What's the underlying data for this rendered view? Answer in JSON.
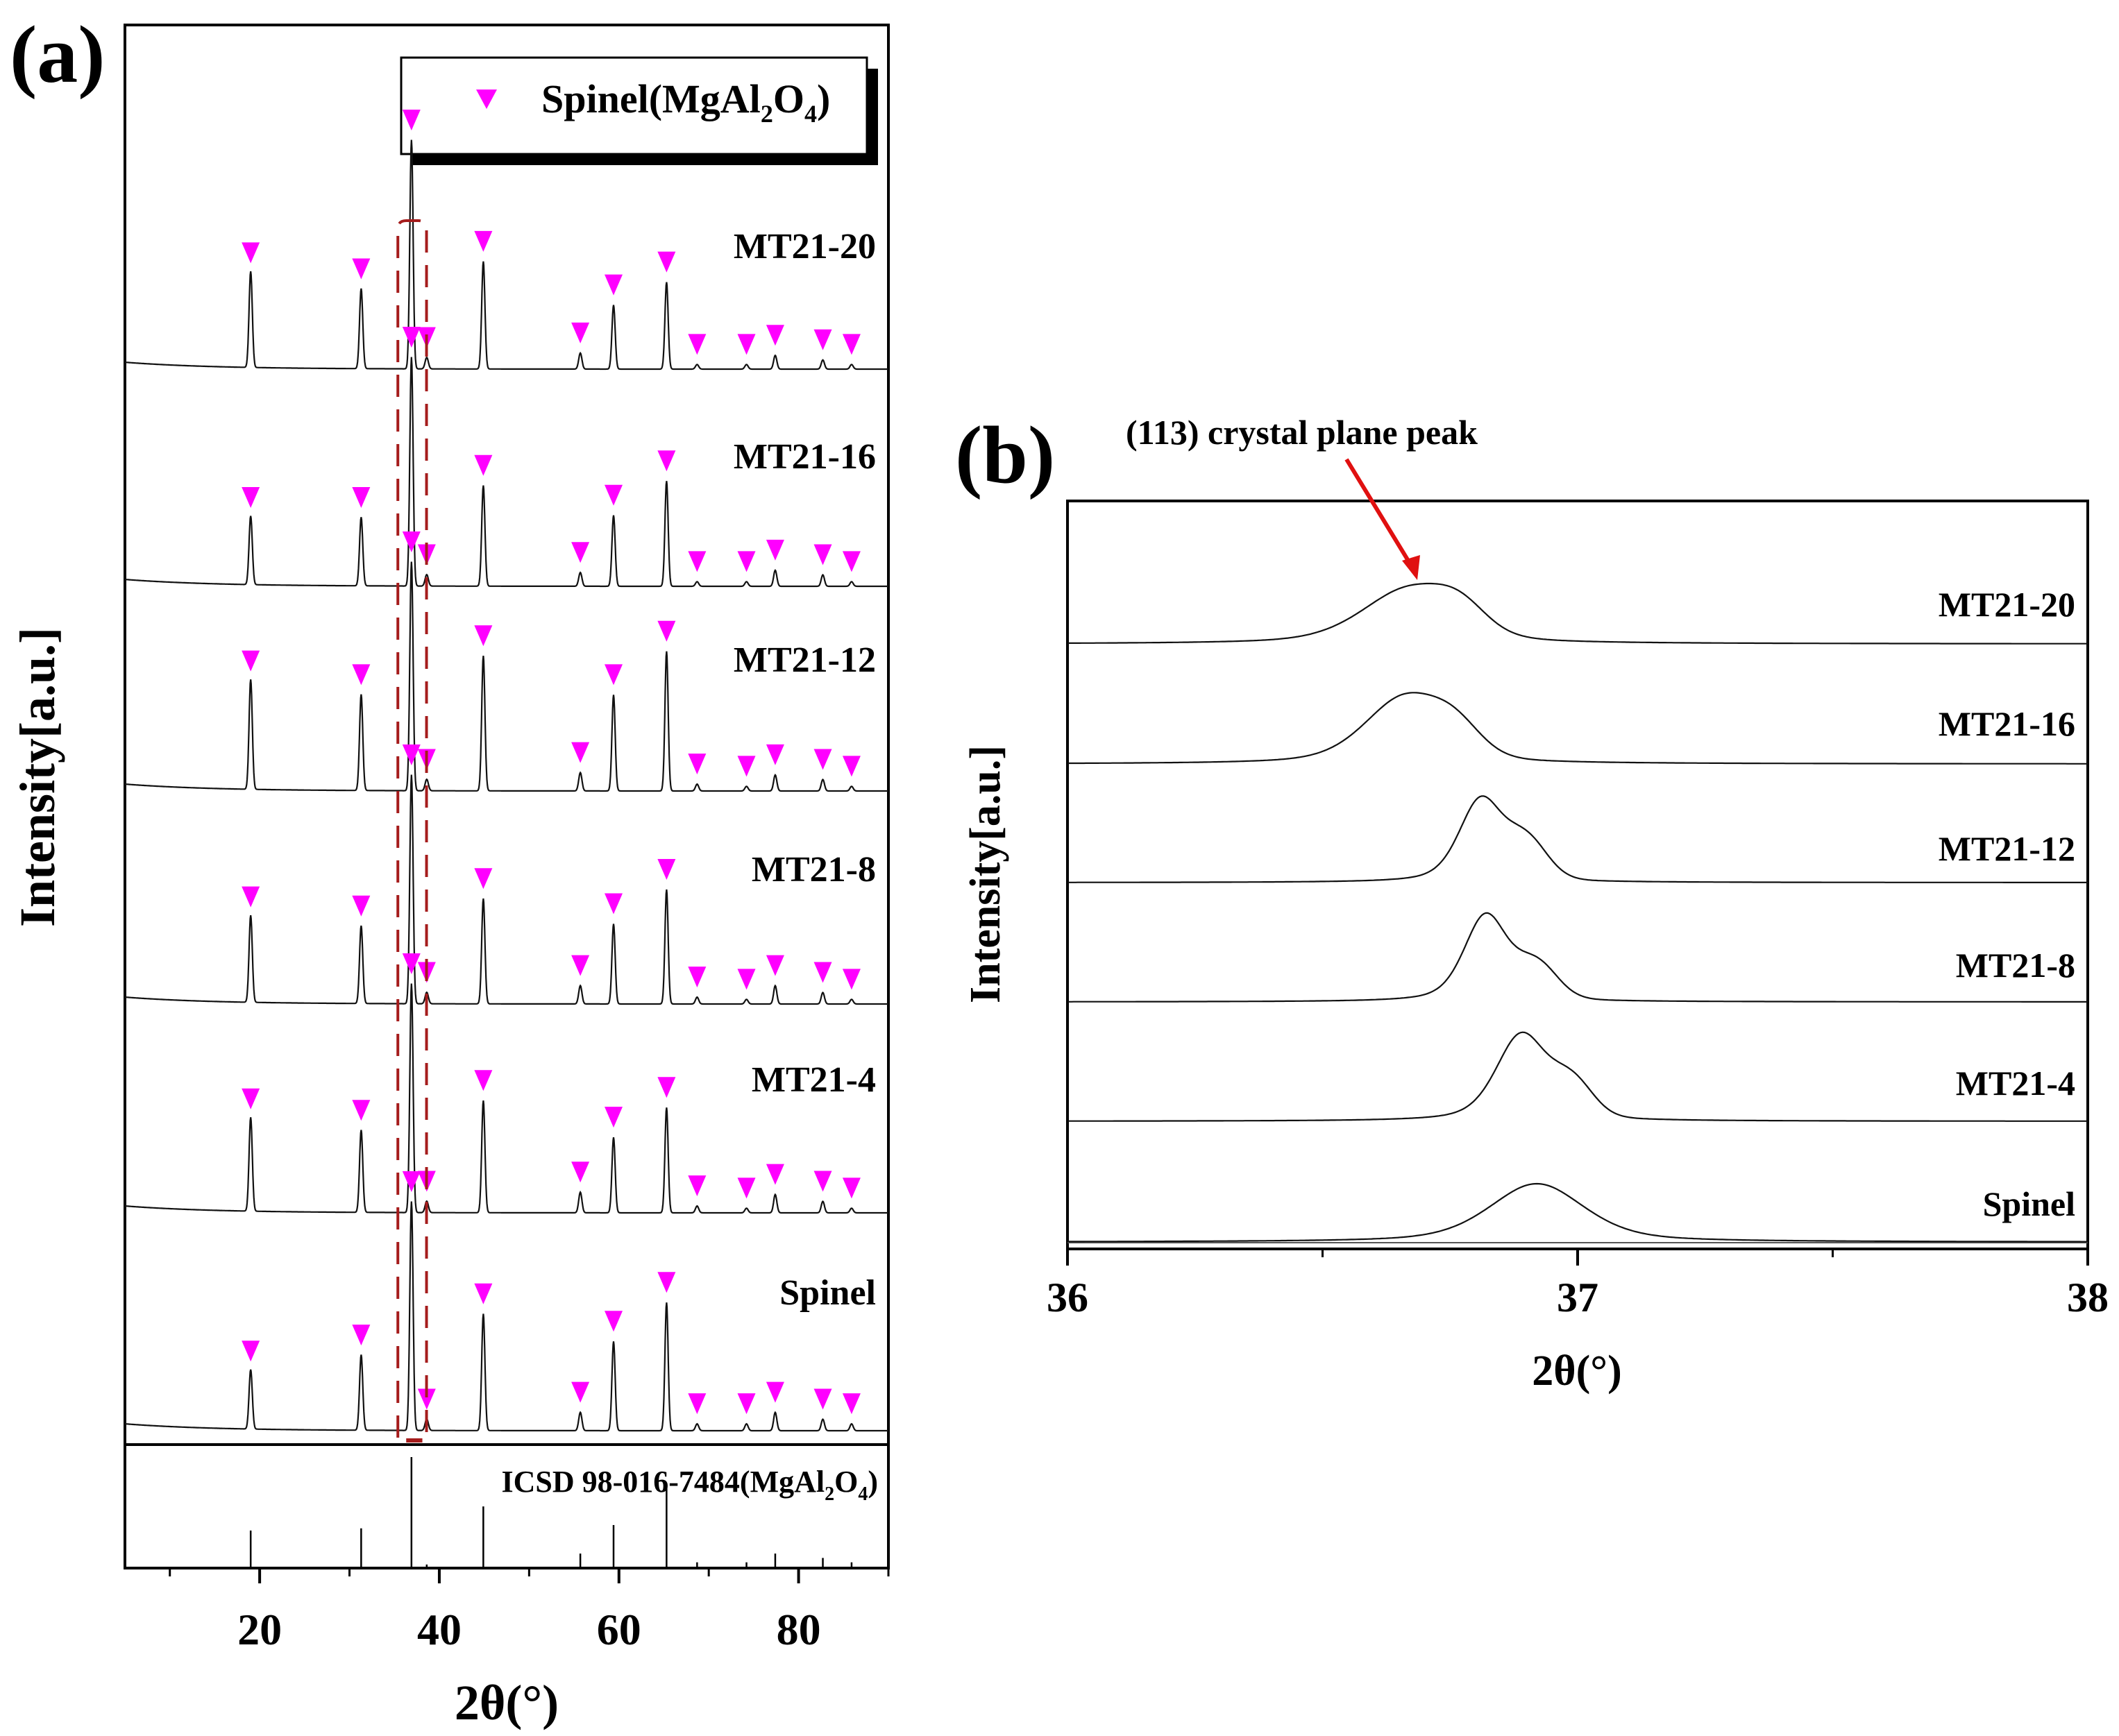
{
  "figure": {
    "panel_a_label": "(a)",
    "panel_b_label": "(b)"
  },
  "chart_data": [
    {
      "id": "panel-a",
      "type": "line",
      "title": "",
      "xlabel": "2θ(°)",
      "ylabel": "Intensity[a.u.]",
      "xlim": [
        5,
        90
      ],
      "xticks_major": [
        20,
        40,
        60,
        80
      ],
      "xticks_minor": [
        10,
        30,
        50,
        70,
        90
      ],
      "y_ticks_shown": false,
      "grid": false,
      "legend": {
        "placement": "top-right",
        "entries": [
          {
            "marker": "inverted-triangle",
            "color": "#ff00ff",
            "label_main": "Spinel(MgAl",
            "sub1": "2",
            "mid": "O",
            "sub2": "4",
            "label_end": ")"
          }
        ]
      },
      "marker_color": "#ff00ff",
      "highlight_box": {
        "x_range": [
          35.0,
          38.5
        ],
        "color": "#a51c1c",
        "style": "dashed"
      },
      "peak_positions": [
        19.0,
        31.3,
        36.9,
        38.6,
        44.9,
        55.7,
        59.4,
        65.3,
        68.7,
        74.2,
        77.4,
        82.7,
        85.9
      ],
      "series": [
        {
          "name": "MT21-20",
          "relative_intensity": [
            0.42,
            0.35,
            1.0,
            0.05,
            0.47,
            0.07,
            0.28,
            0.38,
            0.02,
            0.02,
            0.06,
            0.04,
            0.02
          ]
        },
        {
          "name": "MT21-16",
          "relative_intensity": [
            0.3,
            0.3,
            1.0,
            0.05,
            0.44,
            0.06,
            0.31,
            0.46,
            0.02,
            0.02,
            0.07,
            0.05,
            0.02
          ]
        },
        {
          "name": "MT21-12",
          "relative_intensity": [
            0.48,
            0.42,
            1.0,
            0.05,
            0.59,
            0.08,
            0.42,
            0.61,
            0.03,
            0.02,
            0.07,
            0.05,
            0.02
          ]
        },
        {
          "name": "MT21-8",
          "relative_intensity": [
            0.38,
            0.34,
            1.0,
            0.05,
            0.46,
            0.08,
            0.35,
            0.5,
            0.03,
            0.02,
            0.08,
            0.05,
            0.02
          ]
        },
        {
          "name": "MT21-4",
          "relative_intensity": [
            0.41,
            0.36,
            1.0,
            0.05,
            0.49,
            0.09,
            0.33,
            0.46,
            0.03,
            0.02,
            0.08,
            0.05,
            0.02
          ]
        },
        {
          "name": "Spinel",
          "relative_intensity": [
            0.26,
            0.33,
            1.0,
            0.05,
            0.51,
            0.08,
            0.39,
            0.56,
            0.03,
            0.03,
            0.08,
            0.05,
            0.03
          ]
        }
      ],
      "reference": {
        "label_main": "ICSD 98-016-7484(MgAl",
        "sub1": "2",
        "mid": "O",
        "sub2": "4",
        "label_end": ")",
        "positions": [
          19.0,
          31.3,
          36.9,
          38.6,
          44.9,
          55.7,
          59.4,
          65.3,
          68.7,
          74.2,
          77.4,
          82.7,
          85.9
        ],
        "intensities": [
          33,
          35,
          100,
          2,
          55,
          12,
          38,
          73,
          4,
          4,
          12,
          8,
          4
        ]
      }
    },
    {
      "id": "panel-b",
      "type": "line",
      "title": "",
      "xlabel": "2θ(°)",
      "ylabel": "Intensity[a.u.]",
      "xlim": [
        36,
        38
      ],
      "xticks_major": [
        36,
        37,
        38
      ],
      "xticks_minor": [
        36.5,
        37.5
      ],
      "y_ticks_shown": false,
      "grid": false,
      "annotation": {
        "text": "(113) crystal plane peak",
        "arrow_color": "#e01010",
        "points_to": {
          "series": "MT21-20",
          "x": 36.66
        }
      },
      "series": [
        {
          "name": "MT21-20",
          "main_peak": 36.67,
          "main_width": 0.13,
          "shoulder": 36.77,
          "shoulder_rel": 0.38,
          "shoulder_width": 0.05
        },
        {
          "name": "MT21-16",
          "main_peak": 36.66,
          "main_width": 0.11,
          "shoulder": 36.76,
          "shoulder_rel": 0.38,
          "shoulder_width": 0.05
        },
        {
          "name": "MT21-12",
          "main_peak": 36.81,
          "main_width": 0.06,
          "shoulder": 36.9,
          "shoulder_rel": 0.45,
          "shoulder_width": 0.04
        },
        {
          "name": "MT21-8",
          "main_peak": 36.82,
          "main_width": 0.06,
          "shoulder": 36.92,
          "shoulder_rel": 0.38,
          "shoulder_width": 0.04
        },
        {
          "name": "MT21-4",
          "main_peak": 36.89,
          "main_width": 0.07,
          "shoulder": 36.99,
          "shoulder_rel": 0.38,
          "shoulder_width": 0.04
        },
        {
          "name": "Spinel",
          "main_peak": 36.92,
          "main_width": 0.13,
          "shoulder": null,
          "shoulder_rel": 0,
          "shoulder_width": 0
        }
      ]
    }
  ]
}
